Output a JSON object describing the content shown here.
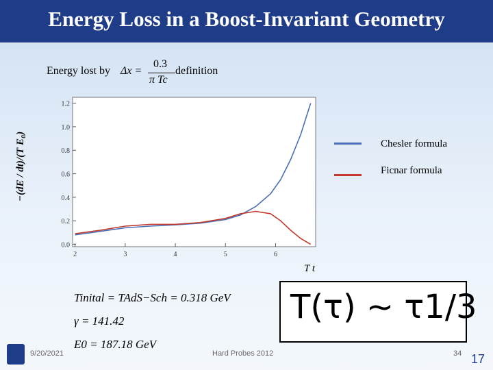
{
  "title": "Energy Loss in a Boost-Invariant Geometry",
  "subtitle": "Energy lost by",
  "formula_lhs": "Δx =",
  "formula_num": "0.3",
  "formula_den": "π Tc",
  "definition_word": "definition",
  "chart_data": {
    "type": "line",
    "ylabel": "−(dE / dt)/(T E₀)",
    "xlabel": "T t",
    "xlim": [
      1.95,
      6.8
    ],
    "ylim": [
      -0.02,
      1.25
    ],
    "xticks": [
      "2",
      "3",
      "4",
      "5",
      "6"
    ],
    "yticks": [
      "0.0",
      "0.2",
      "0.4",
      "0.6",
      "0.8",
      "1.0",
      "1.2"
    ],
    "series": [
      {
        "name": "Chesler formula",
        "color": "#4a6fb5",
        "x": [
          2.0,
          2.5,
          3.0,
          3.5,
          4.0,
          4.5,
          5.0,
          5.3,
          5.6,
          5.9,
          6.1,
          6.3,
          6.5,
          6.7
        ],
        "y": [
          0.08,
          0.11,
          0.14,
          0.155,
          0.165,
          0.18,
          0.21,
          0.25,
          0.32,
          0.43,
          0.55,
          0.72,
          0.93,
          1.2
        ]
      },
      {
        "name": "Ficnar formula",
        "color": "#c0392b",
        "x": [
          2.0,
          2.5,
          3.0,
          3.5,
          4.0,
          4.5,
          5.0,
          5.3,
          5.6,
          5.9,
          6.1,
          6.3,
          6.5,
          6.7
        ],
        "y": [
          0.09,
          0.12,
          0.155,
          0.17,
          0.17,
          0.185,
          0.22,
          0.26,
          0.28,
          0.26,
          0.2,
          0.12,
          0.05,
          0.0
        ]
      }
    ]
  },
  "params": {
    "line1": "Tinital = TAdS−Sch = 0.318 GeV",
    "line2": "γ = 141.42",
    "line3": "E0 = 187.18 GeV"
  },
  "scaling": "T(τ) ~ τ1/3",
  "footer": {
    "date": "9/20/2021",
    "event": "Hard Probes 2012",
    "slide": "34"
  },
  "page_number": "17"
}
